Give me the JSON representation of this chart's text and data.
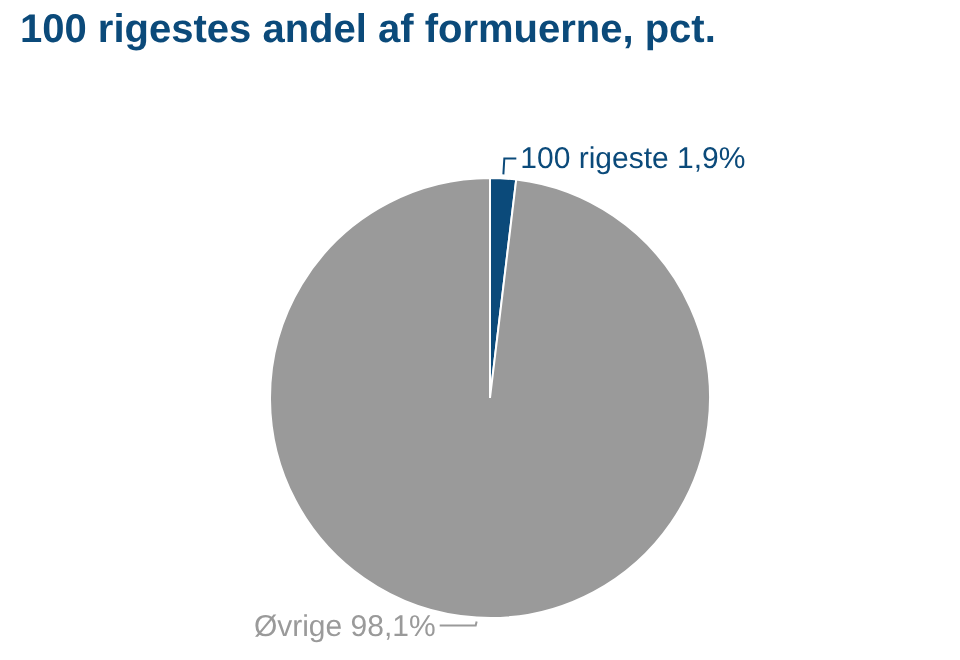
{
  "chart_data": {
    "type": "pie",
    "title": "100 rigestes andel af formuerne, pct.",
    "categories": [
      "100 rigeste",
      "Øvrige"
    ],
    "values": [
      1.9,
      98.1
    ],
    "value_labels": [
      "1,9%",
      "98,1%"
    ],
    "colors": [
      "#0b4a7a",
      "#9a9a9a"
    ],
    "legend": false
  }
}
